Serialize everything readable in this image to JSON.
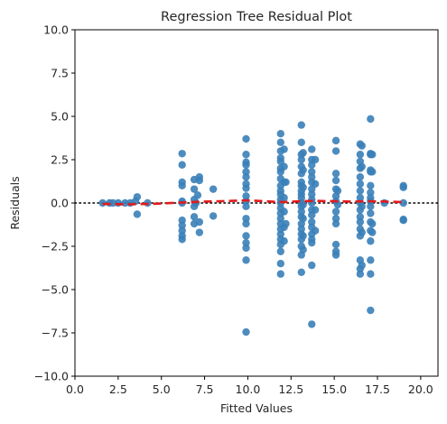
{
  "chart_data": {
    "type": "scatter",
    "title": "Regression Tree Residual Plot",
    "xlabel": "Fitted Values",
    "ylabel": "Residuals",
    "xlim": [
      0,
      21
    ],
    "ylim": [
      -10,
      10
    ],
    "xticks": [
      "0.0",
      "2.5",
      "5.0",
      "7.5",
      "10.0",
      "12.5",
      "15.0",
      "17.5",
      "20.0"
    ],
    "yticks": [
      "−10.0",
      "−7.5",
      "−5.0",
      "−2.5",
      "0.0",
      "2.5",
      "5.0",
      "7.5",
      "10.0"
    ],
    "grid": false,
    "point_color": "#3a80b8",
    "trend_color": "#e31a1c",
    "zero_line_color": "#000000",
    "points": [
      [
        1.6,
        0.0
      ],
      [
        2.0,
        0.0
      ],
      [
        2.2,
        0.0
      ],
      [
        2.5,
        0.0
      ],
      [
        2.9,
        0.0
      ],
      [
        3.2,
        0.0
      ],
      [
        3.5,
        0.1
      ],
      [
        3.6,
        0.35
      ],
      [
        3.6,
        -0.65
      ],
      [
        4.2,
        0.0
      ],
      [
        6.2,
        2.85
      ],
      [
        6.2,
        2.2
      ],
      [
        6.2,
        1.2
      ],
      [
        6.2,
        1.0
      ],
      [
        6.2,
        0.1
      ],
      [
        6.2,
        0.0
      ],
      [
        6.2,
        -1.0
      ],
      [
        6.2,
        -1.3
      ],
      [
        6.2,
        -1.6
      ],
      [
        6.2,
        -1.9
      ],
      [
        6.2,
        -2.1
      ],
      [
        6.9,
        1.35
      ],
      [
        6.9,
        0.8
      ],
      [
        6.9,
        0.2
      ],
      [
        6.9,
        -0.2
      ],
      [
        6.9,
        -0.8
      ],
      [
        6.9,
        -1.2
      ],
      [
        7.0,
        0.0
      ],
      [
        7.1,
        0.45
      ],
      [
        7.2,
        1.5
      ],
      [
        7.2,
        1.3
      ],
      [
        7.2,
        -1.1
      ],
      [
        7.2,
        -1.7
      ],
      [
        8.0,
        0.8
      ],
      [
        8.0,
        -0.75
      ],
      [
        9.9,
        3.7
      ],
      [
        9.9,
        2.8
      ],
      [
        9.9,
        2.35
      ],
      [
        9.9,
        2.2
      ],
      [
        9.9,
        1.8
      ],
      [
        9.9,
        1.5
      ],
      [
        9.9,
        1.1
      ],
      [
        9.9,
        0.85
      ],
      [
        9.9,
        0.4
      ],
      [
        9.9,
        0.1
      ],
      [
        9.9,
        -0.2
      ],
      [
        9.9,
        -0.9
      ],
      [
        9.9,
        -1.2
      ],
      [
        9.9,
        -1.9
      ],
      [
        9.9,
        -2.3
      ],
      [
        9.9,
        -2.6
      ],
      [
        9.9,
        -3.3
      ],
      [
        9.9,
        -7.45
      ],
      [
        11.9,
        4.0
      ],
      [
        11.9,
        3.5
      ],
      [
        11.9,
        3.0
      ],
      [
        11.9,
        2.6
      ],
      [
        11.9,
        2.4
      ],
      [
        11.9,
        2.0
      ],
      [
        11.9,
        1.8
      ],
      [
        11.9,
        1.4
      ],
      [
        11.9,
        1.0
      ],
      [
        11.9,
        0.7
      ],
      [
        11.9,
        0.5
      ],
      [
        11.9,
        0.2
      ],
      [
        11.9,
        0.0
      ],
      [
        11.9,
        -0.3
      ],
      [
        11.9,
        -0.6
      ],
      [
        11.9,
        -0.9
      ],
      [
        11.9,
        -1.2
      ],
      [
        11.9,
        -1.5
      ],
      [
        11.9,
        -1.8
      ],
      [
        11.9,
        -2.1
      ],
      [
        11.9,
        -2.4
      ],
      [
        11.9,
        -2.8
      ],
      [
        11.9,
        -3.5
      ],
      [
        11.9,
        -4.1
      ],
      [
        12.1,
        3.1
      ],
      [
        12.1,
        2.1
      ],
      [
        12.1,
        1.2
      ],
      [
        12.1,
        0.3
      ],
      [
        12.1,
        -0.5
      ],
      [
        12.1,
        -1.4
      ],
      [
        12.1,
        -2.2
      ],
      [
        12.2,
        1.2
      ],
      [
        12.2,
        -1.2
      ],
      [
        13.1,
        4.5
      ],
      [
        13.1,
        3.5
      ],
      [
        13.1,
        2.8
      ],
      [
        13.1,
        2.5
      ],
      [
        13.1,
        2.1
      ],
      [
        13.1,
        1.7
      ],
      [
        13.1,
        1.2
      ],
      [
        13.1,
        1.0
      ],
      [
        13.1,
        0.7
      ],
      [
        13.1,
        0.5
      ],
      [
        13.1,
        0.3
      ],
      [
        13.1,
        0.0
      ],
      [
        13.1,
        -0.2
      ],
      [
        13.1,
        -0.5
      ],
      [
        13.1,
        -0.8
      ],
      [
        13.1,
        -1.2
      ],
      [
        13.1,
        -1.5
      ],
      [
        13.1,
        -1.8
      ],
      [
        13.1,
        -2.1
      ],
      [
        13.1,
        -2.5
      ],
      [
        13.1,
        -3.0
      ],
      [
        13.1,
        -4.0
      ],
      [
        13.2,
        2.9
      ],
      [
        13.2,
        1.9
      ],
      [
        13.2,
        0.9
      ],
      [
        13.2,
        -0.1
      ],
      [
        13.2,
        -0.9
      ],
      [
        13.2,
        -1.9
      ],
      [
        13.2,
        -2.7
      ],
      [
        13.7,
        3.1
      ],
      [
        13.7,
        2.5
      ],
      [
        13.7,
        2.2
      ],
      [
        13.7,
        1.8
      ],
      [
        13.7,
        1.5
      ],
      [
        13.7,
        1.2
      ],
      [
        13.7,
        0.8
      ],
      [
        13.7,
        0.5
      ],
      [
        13.7,
        0.2
      ],
      [
        13.7,
        0.0
      ],
      [
        13.7,
        -0.4
      ],
      [
        13.7,
        -0.7
      ],
      [
        13.7,
        -1.1
      ],
      [
        13.7,
        -1.4
      ],
      [
        13.7,
        -1.8
      ],
      [
        13.7,
        -2.1
      ],
      [
        13.7,
        -2.3
      ],
      [
        13.7,
        -3.6
      ],
      [
        13.7,
        -7.0
      ],
      [
        13.9,
        2.5
      ],
      [
        13.9,
        1.1
      ],
      [
        13.9,
        -0.4
      ],
      [
        13.9,
        -1.6
      ],
      [
        15.1,
        3.6
      ],
      [
        15.1,
        3.0
      ],
      [
        15.1,
        1.7
      ],
      [
        15.1,
        1.3
      ],
      [
        15.1,
        0.8
      ],
      [
        15.1,
        0.4
      ],
      [
        15.1,
        0.1
      ],
      [
        15.1,
        -0.5
      ],
      [
        15.1,
        -0.9
      ],
      [
        15.1,
        -1.2
      ],
      [
        15.1,
        -2.4
      ],
      [
        15.1,
        -2.8
      ],
      [
        15.1,
        -3.0
      ],
      [
        15.2,
        0.7
      ],
      [
        15.2,
        -0.1
      ],
      [
        16.5,
        3.4
      ],
      [
        16.5,
        2.8
      ],
      [
        16.5,
        2.4
      ],
      [
        16.5,
        2.0
      ],
      [
        16.5,
        1.5
      ],
      [
        16.5,
        1.1
      ],
      [
        16.5,
        0.7
      ],
      [
        16.5,
        0.3
      ],
      [
        16.5,
        0.0
      ],
      [
        16.5,
        -0.4
      ],
      [
        16.5,
        -0.8
      ],
      [
        16.5,
        -1.1
      ],
      [
        16.5,
        -1.5
      ],
      [
        16.5,
        -1.9
      ],
      [
        16.5,
        -3.3
      ],
      [
        16.5,
        -3.8
      ],
      [
        16.5,
        -4.1
      ],
      [
        16.6,
        3.3
      ],
      [
        16.6,
        2.1
      ],
      [
        16.6,
        -0.2
      ],
      [
        16.6,
        -1.7
      ],
      [
        16.6,
        -3.6
      ],
      [
        17.1,
        4.85
      ],
      [
        17.1,
        2.85
      ],
      [
        17.1,
        2.8
      ],
      [
        17.1,
        1.9
      ],
      [
        17.1,
        1.8
      ],
      [
        17.1,
        1.0
      ],
      [
        17.1,
        0.6
      ],
      [
        17.1,
        0.3
      ],
      [
        17.1,
        0.1
      ],
      [
        17.1,
        -0.2
      ],
      [
        17.1,
        -0.6
      ],
      [
        17.1,
        -1.1
      ],
      [
        17.1,
        -1.6
      ],
      [
        17.1,
        -2.2
      ],
      [
        17.1,
        -3.3
      ],
      [
        17.1,
        -4.1
      ],
      [
        17.1,
        -6.2
      ],
      [
        17.2,
        2.8
      ],
      [
        17.2,
        1.8
      ],
      [
        17.2,
        -1.2
      ],
      [
        17.2,
        -1.7
      ],
      [
        17.9,
        0.0
      ],
      [
        19.0,
        1.0
      ],
      [
        19.0,
        0.9
      ],
      [
        19.0,
        0.0
      ],
      [
        19.0,
        -0.95
      ],
      [
        19.0,
        -1.0
      ]
    ],
    "trend": [
      [
        1.6,
        -0.05
      ],
      [
        3.0,
        -0.08
      ],
      [
        4.5,
        -0.05
      ],
      [
        6.0,
        0.02
      ],
      [
        7.5,
        0.08
      ],
      [
        9.0,
        0.12
      ],
      [
        10.0,
        0.15
      ],
      [
        11.0,
        0.1
      ],
      [
        12.0,
        0.05
      ],
      [
        13.0,
        0.1
      ],
      [
        14.0,
        0.12
      ],
      [
        15.0,
        0.1
      ],
      [
        16.0,
        0.08
      ],
      [
        17.0,
        0.1
      ],
      [
        18.0,
        0.08
      ],
      [
        19.0,
        0.05
      ]
    ]
  }
}
